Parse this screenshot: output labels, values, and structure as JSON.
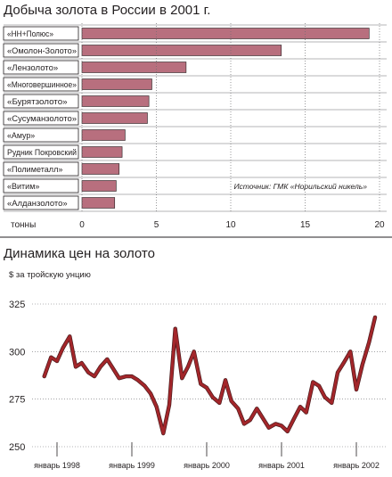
{
  "chart_data": [
    {
      "type": "bar",
      "title": "Добыча золота в России в 2001 г.",
      "categories": [
        "«НН+Полюс»",
        "«Омолон-Золото»",
        "«Лензолото»",
        "«Многовершинное»",
        "«Бурятзолото»",
        "«Сусуманзолото»",
        "«Амур»",
        "Рудник Покровский",
        "«Полиметалл»",
        "«Витим»",
        "«Алданзолото»"
      ],
      "values": [
        19.3,
        13.4,
        7.0,
        4.7,
        4.5,
        4.4,
        2.9,
        2.7,
        2.5,
        2.3,
        2.2
      ],
      "xlabel": "тонны",
      "xlim": [
        0,
        20
      ],
      "xticks": [
        "0",
        "5",
        "10",
        "15",
        "20"
      ],
      "source": "Источник: ГМК «Норильский никель»",
      "bar_color": "#b86f7e",
      "bar_border": "#231f20"
    },
    {
      "type": "line",
      "title": "Динамика цен на золото",
      "ylabel": "$ за тройскую унцию",
      "ylim": [
        250,
        325
      ],
      "yticks": [
        "325",
        "300",
        "275",
        "250"
      ],
      "xticks": [
        "январь 1998",
        "январь 1999",
        "январь 2000",
        "январь 2001",
        "январь 2002"
      ],
      "xlim": [
        1998.0,
        2002.42
      ],
      "line_color": "#a3262a",
      "line_shadow": "#4a1a1c",
      "x": [
        1997.83,
        1997.92,
        1998.0,
        1998.08,
        1998.17,
        1998.25,
        1998.33,
        1998.42,
        1998.5,
        1998.58,
        1998.67,
        1998.75,
        1998.83,
        1998.92,
        1999.0,
        1999.08,
        1999.17,
        1999.25,
        1999.33,
        1999.42,
        1999.5,
        1999.58,
        1999.67,
        1999.75,
        1999.83,
        1999.92,
        2000.0,
        2000.08,
        2000.17,
        2000.25,
        2000.33,
        2000.42,
        2000.5,
        2000.58,
        2000.67,
        2000.75,
        2000.83,
        2000.92,
        2001.0,
        2001.08,
        2001.17,
        2001.25,
        2001.33,
        2001.42,
        2001.5,
        2001.58,
        2001.67,
        2001.75,
        2001.83,
        2001.92,
        2002.0,
        2002.08,
        2002.17,
        2002.25
      ],
      "values": [
        287,
        297,
        295,
        302,
        308,
        292,
        294,
        289,
        287,
        292,
        296,
        291,
        286,
        287,
        287,
        285,
        282,
        278,
        271,
        257,
        272,
        312,
        286,
        292,
        300,
        283,
        281,
        276,
        273,
        285,
        274,
        270,
        262,
        264,
        270,
        265,
        260,
        262,
        261,
        258,
        265,
        271,
        268,
        284,
        282,
        276,
        273,
        289,
        294,
        300,
        280,
        293,
        305,
        318
      ]
    }
  ]
}
